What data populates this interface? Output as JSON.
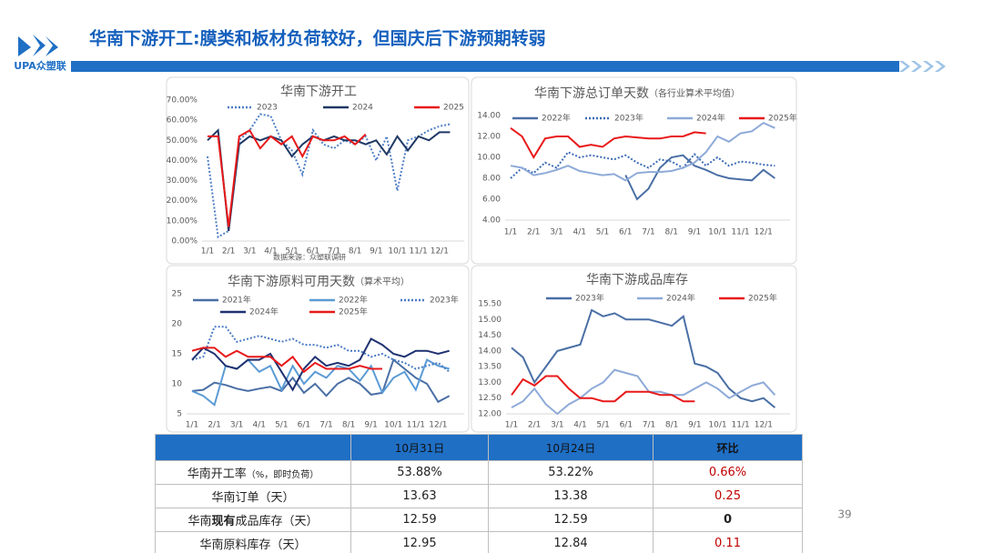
{
  "header": {
    "title": "华南下游开工:膜类和板材负荷较好，但国庆后下游预期转弱",
    "logo": "UPA众塑联"
  },
  "page_number": "39",
  "chart_data": [
    {
      "type": "line",
      "title": "华南下游开工",
      "note": "数据来源：众塑联调研",
      "categories": [
        "1/1",
        null,
        "2/1",
        null,
        "3/1",
        null,
        "4/1",
        null,
        "5/1",
        null,
        "6/1",
        null,
        "7/1",
        null,
        "8/1",
        null,
        "9/1",
        null,
        "10/1",
        null,
        "11/1",
        null,
        "12/1",
        null
      ],
      "ylim": [
        0,
        70
      ],
      "yticks": [
        {
          "value": 0,
          "label": "0.00%"
        },
        {
          "value": 10,
          "label": "10.00%"
        },
        {
          "value": 20,
          "label": "20.00%"
        },
        {
          "value": 30,
          "label": "30.00%"
        },
        {
          "value": 40,
          "label": "40.00%"
        },
        {
          "value": 50,
          "label": "50.00%"
        },
        {
          "value": 60,
          "label": "60.00%"
        },
        {
          "value": 70,
          "label": "70.00%"
        }
      ],
      "series": [
        {
          "name": "2023",
          "color": "#4f7fc6",
          "line_style": "dotted",
          "values": [
            42,
            2,
            5,
            50,
            55,
            63,
            62,
            50,
            45,
            33,
            55,
            48,
            46,
            50,
            48,
            52,
            40,
            52,
            25,
            50,
            52,
            55,
            57,
            58
          ]
        },
        {
          "name": "2024",
          "color": "#1f3864",
          "line_style": "solid",
          "values": [
            50,
            55,
            5,
            48,
            52,
            50,
            52,
            50,
            42,
            48,
            52,
            50,
            52,
            50,
            50,
            48,
            50,
            43,
            52,
            45,
            52,
            50,
            54,
            54
          ]
        },
        {
          "name": "2025",
          "color": "#e8191a",
          "line_style": "solid",
          "values": [
            52,
            52,
            7,
            52,
            55,
            46,
            52,
            48,
            52,
            42,
            52,
            50,
            50,
            52,
            48,
            53,
            null,
            null,
            null,
            null,
            null,
            null,
            null,
            null
          ]
        }
      ]
    },
    {
      "type": "line",
      "title": "华南下游总订单天数",
      "subtitle": "（各行业算术平均值）",
      "categories": [
        "1/1",
        null,
        "2/1",
        null,
        "3/1",
        null,
        "4/1",
        null,
        "5/1",
        null,
        "6/1",
        null,
        "7/1",
        null,
        "8/1",
        null,
        "9/1",
        null,
        "10/1",
        null,
        "11/1",
        null,
        "12/1",
        null
      ],
      "ylim": [
        4,
        14
      ],
      "yticks": [
        {
          "value": 4,
          "label": "4.00"
        },
        {
          "value": 6,
          "label": "6.00"
        },
        {
          "value": 8,
          "label": "8.00"
        },
        {
          "value": 10,
          "label": "10.00"
        },
        {
          "value": 12,
          "label": "12.00"
        },
        {
          "value": 14,
          "label": "14.00"
        }
      ],
      "series": [
        {
          "name": "2022年",
          "color": "#4a6fa5",
          "line_style": "solid",
          "values": [
            null,
            null,
            null,
            null,
            null,
            null,
            null,
            null,
            null,
            null,
            8.3,
            6.0,
            7.0,
            9.0,
            10.0,
            10.2,
            9.2,
            8.8,
            8.3,
            8.0,
            7.9,
            7.8,
            8.8,
            8.0
          ]
        },
        {
          "name": "2023年",
          "color": "#3d6cb5",
          "line_style": "dotted",
          "values": [
            8.0,
            9.0,
            8.5,
            9.5,
            9.0,
            10.5,
            10.0,
            10.2,
            10.0,
            9.8,
            10.2,
            9.5,
            9.0,
            9.8,
            9.6,
            9.0,
            10.3,
            9.2,
            10.0,
            9.2,
            9.6,
            9.5,
            9.3,
            9.2
          ]
        },
        {
          "name": "2024年",
          "color": "#8eaad8",
          "line_style": "solid",
          "values": [
            9.2,
            9.0,
            8.3,
            8.5,
            8.8,
            9.2,
            8.7,
            8.5,
            8.3,
            8.4,
            7.8,
            8.5,
            8.6,
            8.6,
            8.7,
            9.0,
            9.5,
            10.5,
            12.0,
            11.5,
            12.3,
            12.5,
            13.3,
            12.8
          ]
        },
        {
          "name": "2025年",
          "color": "#e8191a",
          "line_style": "solid",
          "values": [
            12.8,
            12.0,
            10.0,
            11.8,
            12.0,
            12.0,
            11.0,
            11.2,
            11.0,
            11.8,
            12.0,
            11.9,
            11.8,
            11.8,
            12.0,
            12.0,
            12.4,
            12.3,
            null,
            null,
            null,
            null,
            null,
            null
          ]
        }
      ]
    },
    {
      "type": "line",
      "title": "华南下游原料可用天数",
      "subtitle": "（算术平均）",
      "categories": [
        "1/1",
        null,
        "2/1",
        null,
        "3/1",
        null,
        "4/1",
        null,
        "5/1",
        null,
        "6/1",
        null,
        "7/1",
        null,
        "8/1",
        null,
        "9/1",
        null,
        "10/1",
        null,
        "11/1",
        null,
        "12/1",
        null
      ],
      "ylim": [
        5,
        25
      ],
      "yticks": [
        5,
        10,
        15,
        20,
        25
      ],
      "series": [
        {
          "name": "2021年",
          "color": "#4a6fa5",
          "line_style": "solid",
          "values": [
            8.8,
            9,
            10.2,
            9.8,
            9.2,
            8.8,
            9.2,
            9.5,
            8.8,
            11,
            8.5,
            10,
            8,
            10,
            11,
            10,
            8.2,
            8.5,
            14,
            12.5,
            11,
            10,
            7,
            8
          ]
        },
        {
          "name": "2022年",
          "color": "#5b9bd5",
          "line_style": "solid",
          "values": [
            8.8,
            8,
            6.5,
            13,
            12.5,
            14,
            12,
            13,
            9,
            13,
            10,
            12,
            11,
            13,
            12.5,
            10.5,
            13,
            8.5,
            11,
            12,
            9,
            14,
            13,
            12.5
          ]
        },
        {
          "name": "2023年",
          "color": "#4a7bc4",
          "line_style": "dotted",
          "values": [
            14,
            14.5,
            19.5,
            19.5,
            17,
            17.5,
            18,
            17.5,
            17,
            17.5,
            16.5,
            16.5,
            16,
            16.5,
            15.5,
            15.5,
            14.5,
            15,
            14,
            13.5,
            12.5,
            13,
            13.5,
            12
          ]
        },
        {
          "name": "2024年",
          "color": "#1f3271",
          "line_style": "solid",
          "values": [
            14,
            16,
            15,
            13,
            12.5,
            14,
            14,
            15,
            12,
            9,
            12.5,
            14.5,
            13,
            13.5,
            13,
            14,
            17.5,
            16.5,
            15,
            14.5,
            15.5,
            15.5,
            15,
            15.5
          ]
        },
        {
          "name": "2025年",
          "color": "#e8191a",
          "line_style": "solid",
          "values": [
            15.5,
            16,
            16,
            14.5,
            15.5,
            14.5,
            14.5,
            14.5,
            13,
            14.5,
            12,
            13.5,
            12.5,
            12.5,
            12.5,
            13,
            12.5,
            12.5,
            null,
            null,
            null,
            null,
            null,
            null
          ]
        }
      ]
    },
    {
      "type": "line",
      "title": "华南下游成品库存",
      "categories": [
        "1/1",
        null,
        "2/1",
        null,
        "3/1",
        null,
        "4/1",
        null,
        "5/1",
        null,
        "6/1",
        null,
        "7/1",
        null,
        "8/1",
        null,
        "9/1",
        null,
        "10/1",
        null,
        "11/1",
        null,
        "12/1",
        null
      ],
      "ylim": [
        12,
        15.5
      ],
      "yticks": [
        {
          "value": 12,
          "label": "12.00"
        },
        {
          "value": 12.5,
          "label": "12.50"
        },
        {
          "value": 13,
          "label": "13.00"
        },
        {
          "value": 13.5,
          "label": "13.50"
        },
        {
          "value": 14,
          "label": "14.00"
        },
        {
          "value": 14.5,
          "label": "14.50"
        },
        {
          "value": 15,
          "label": "15.00"
        },
        {
          "value": 15.5,
          "label": "15.50"
        }
      ],
      "series": [
        {
          "name": "2023年",
          "color": "#4a6fa5",
          "line_style": "solid",
          "values": [
            14.1,
            13.8,
            13.0,
            13.5,
            14.0,
            14.1,
            14.2,
            15.3,
            15.1,
            15.2,
            15.0,
            15.0,
            15.0,
            14.9,
            14.8,
            15.1,
            13.6,
            13.5,
            13.3,
            12.8,
            12.5,
            12.4,
            12.5,
            12.2
          ]
        },
        {
          "name": "2024年",
          "color": "#8eaad8",
          "line_style": "solid",
          "values": [
            12.2,
            12.4,
            12.8,
            12.3,
            12.0,
            12.3,
            12.5,
            12.8,
            13.0,
            13.4,
            13.3,
            13.2,
            12.7,
            12.7,
            12.6,
            12.6,
            12.8,
            13.0,
            12.8,
            12.5,
            12.7,
            12.9,
            13.0,
            12.6
          ]
        },
        {
          "name": "2025年",
          "color": "#e8191a",
          "line_style": "solid",
          "values": [
            12.6,
            13.1,
            12.9,
            13.2,
            13.2,
            12.8,
            12.5,
            12.5,
            12.4,
            12.4,
            12.7,
            12.7,
            12.7,
            12.6,
            12.6,
            12.4,
            12.4,
            null,
            null,
            null,
            null,
            null,
            null,
            null
          ]
        }
      ]
    }
  ],
  "table": {
    "header": [
      "10月31日",
      "10月24日",
      "环比"
    ],
    "rows": [
      {
        "label": [
          "华南开工率",
          "（%，即时负荷）"
        ],
        "values": [
          "53.88%",
          "53.22%",
          "0.66%"
        ]
      },
      {
        "label": [
          "华南订单（天）"
        ],
        "values": [
          "13.63",
          "13.38",
          "0.25"
        ]
      },
      {
        "label": [
          "华南",
          "现有",
          "成品库存（天）"
        ],
        "values": [
          "12.59",
          "12.59",
          "0"
        ]
      },
      {
        "label": [
          "华南原料库存（天）"
        ],
        "values": [
          "12.95",
          "12.84",
          "0.11"
        ]
      }
    ]
  }
}
